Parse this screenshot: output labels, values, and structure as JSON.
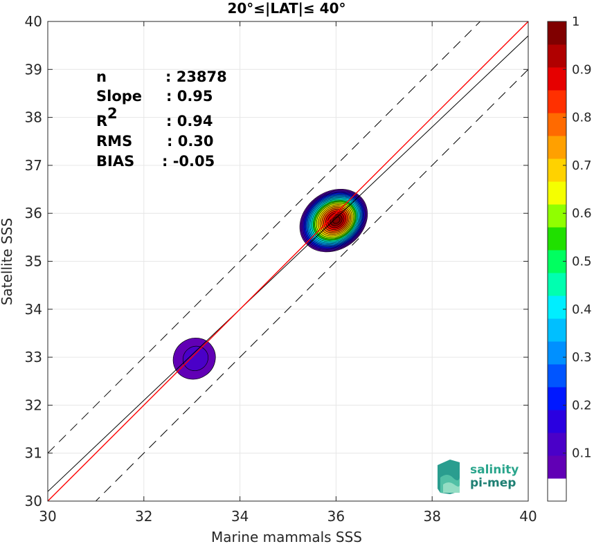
{
  "chart_data": {
    "type": "scatter",
    "title": "20°≤|LAT|≤ 40°",
    "xlabel": "Marine mammals SSS",
    "ylabel": "Satellite SSS",
    "xlim": [
      30,
      40
    ],
    "ylim": [
      30,
      40
    ],
    "xticks": [
      "30",
      "32",
      "34",
      "36",
      "38",
      "40"
    ],
    "yticks": [
      "30",
      "31",
      "32",
      "33",
      "34",
      "35",
      "36",
      "37",
      "38",
      "39",
      "40"
    ],
    "grid": true,
    "stats": [
      {
        "label": "n",
        "value": ": 23878"
      },
      {
        "label": "Slope",
        "value": ": 0.95"
      },
      {
        "label": "R",
        "sup": "2",
        "value": ": 0.94"
      },
      {
        "label": "RMS",
        "value": ": 0.30"
      },
      {
        "label": "BIAS",
        "value": ": -0.05"
      }
    ],
    "reference_lines": {
      "identity": {
        "slope": 1,
        "intercept": 0,
        "color": "#ff0000"
      },
      "fit": {
        "slope": 0.95,
        "intercept": 1.7,
        "color": "#000000"
      },
      "bounds": {
        "offset": 1,
        "style": "dashed",
        "color": "#000000"
      }
    },
    "density_clusters": [
      {
        "center": [
          35.95,
          35.85
        ],
        "rx": 0.75,
        "ry": 0.6,
        "peak": 1.0
      },
      {
        "center": [
          33.05,
          32.97
        ],
        "rx": 0.45,
        "ry": 0.42,
        "peak": 0.08
      }
    ],
    "colorbar": {
      "ticks": [
        "0.1",
        "0.2",
        "0.3",
        "0.4",
        "0.5",
        "0.6",
        "0.7",
        "0.8",
        "0.9",
        "1"
      ],
      "range": [
        0,
        1
      ],
      "levels": 20,
      "colors": [
        "#ffffff",
        "#6100b5",
        "#4a00c8",
        "#2a00e0",
        "#0018ff",
        "#0055ff",
        "#0090ff",
        "#00bfff",
        "#00eeff",
        "#00ffb0",
        "#00ff60",
        "#20e000",
        "#90ff00",
        "#f5ff00",
        "#ffd200",
        "#ffa000",
        "#ff6a00",
        "#ff3000",
        "#e60000",
        "#b00000",
        "#800000"
      ]
    },
    "logo": {
      "line1": "salinity",
      "line2": "pi-mep"
    }
  }
}
